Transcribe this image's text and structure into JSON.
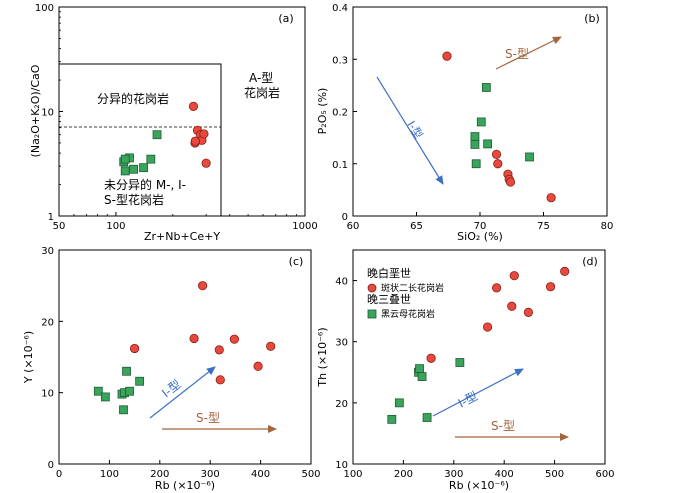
{
  "colors": {
    "late_cretaceous": "#e8493e",
    "late_triassic": "#3aa35c",
    "i_arrow": "#3d6fc7",
    "s_arrow": "#a5643b",
    "axis": "#000000"
  },
  "chart_data": [
    {
      "id": "a",
      "panel_label": "(a)",
      "type": "scatter",
      "xscale": "log",
      "yscale": "log",
      "xlim": [
        50,
        1000
      ],
      "ylim": [
        1,
        100
      ],
      "xticks": [
        "50",
        "100",
        "1000"
      ],
      "xtick_values": [
        50,
        100,
        1000
      ],
      "yticks": [
        "1",
        "10",
        "100"
      ],
      "ytick_values": [
        1,
        10,
        100
      ],
      "xlabel": "Zr+Nb+Ce+Y",
      "ylabel": "(Na₂O+K₂O)/CaO",
      "annotations": {
        "fractionated": "分异的花岗岩",
        "unfractionated_line1": "未分异的 M-, I-",
        "unfractionated_line2": "S-型花岗岩",
        "a_type_line1": "A-型",
        "a_type_line2": "花岗岩"
      },
      "series": [
        {
          "name": "晚白垩世 斑状二长花岗岩",
          "marker": "circle",
          "x": [
            257,
            262,
            270,
            280,
            285,
            292,
            300,
            263
          ],
          "y": [
            11.2,
            5.0,
            6.6,
            6.0,
            5.3,
            6.1,
            3.2,
            5.2
          ]
        },
        {
          "name": "晚三叠世 黑云母花岗岩",
          "marker": "square",
          "x": [
            110,
            112,
            118,
            124,
            140,
            153,
            112,
            165
          ],
          "y": [
            3.3,
            2.7,
            3.6,
            2.8,
            2.9,
            3.5,
            3.5,
            6.0
          ]
        }
      ]
    },
    {
      "id": "b",
      "panel_label": "(b)",
      "type": "scatter",
      "xlim": [
        60,
        80
      ],
      "ylim": [
        0,
        0.4
      ],
      "xticks": [
        "60",
        "65",
        "70",
        "75",
        "80"
      ],
      "xtick_values": [
        60,
        65,
        70,
        75,
        80
      ],
      "yticks": [
        "0",
        "0.1",
        "0.2",
        "0.3",
        "0.4"
      ],
      "ytick_values": [
        0,
        0.1,
        0.2,
        0.3,
        0.4
      ],
      "xlabel": "SiO₂ (%)",
      "ylabel": "P₂O₅ (%)",
      "arrows": {
        "i_label": "I-型",
        "s_label": "S-型"
      },
      "series": [
        {
          "name": "晚白垩世 斑状二长花岗岩",
          "marker": "circle",
          "x": [
            67.4,
            71.3,
            71.4,
            72.2,
            72.3,
            72.4,
            75.6
          ],
          "y": [
            0.306,
            0.118,
            0.1,
            0.08,
            0.07,
            0.065,
            0.035
          ]
        },
        {
          "name": "晚三叠世 黑云母花岗岩",
          "marker": "square",
          "x": [
            69.6,
            69.6,
            69.7,
            70.1,
            70.5,
            70.6,
            73.9
          ],
          "y": [
            0.152,
            0.137,
            0.1,
            0.18,
            0.246,
            0.138,
            0.113
          ]
        }
      ]
    },
    {
      "id": "c",
      "panel_label": "(c)",
      "type": "scatter",
      "xlim": [
        0,
        500
      ],
      "ylim": [
        0,
        30
      ],
      "xticks": [
        "0",
        "100",
        "200",
        "300",
        "400",
        "500"
      ],
      "xtick_values": [
        0,
        100,
        200,
        300,
        400,
        500
      ],
      "yticks": [
        "0",
        "10",
        "20",
        "30"
      ],
      "ytick_values": [
        0,
        10,
        20,
        30
      ],
      "xlabel": "Rb (×10⁻⁶)",
      "ylabel": "Y (×10⁻⁶)",
      "arrows": {
        "i_label": "I-型",
        "s_label": "S-型"
      },
      "series": [
        {
          "name": "晚白垩世 斑状二长花岗岩",
          "marker": "circle",
          "x": [
            150,
            268,
            285,
            318,
            320,
            348,
            395,
            420
          ],
          "y": [
            16.2,
            17.6,
            25.0,
            16.0,
            11.8,
            17.5,
            13.7,
            16.5
          ]
        },
        {
          "name": "晚三叠世 黑云母花岗岩",
          "marker": "square",
          "x": [
            78,
            92,
            125,
            128,
            130,
            134,
            140,
            160
          ],
          "y": [
            10.2,
            9.4,
            9.8,
            7.6,
            10.0,
            13.0,
            10.2,
            11.6
          ]
        }
      ]
    },
    {
      "id": "d",
      "panel_label": "(d)",
      "type": "scatter",
      "xlim": [
        100,
        600
      ],
      "ylim": [
        10,
        45
      ],
      "xticks": [
        "100",
        "200",
        "300",
        "400",
        "500",
        "600"
      ],
      "xtick_values": [
        100,
        200,
        300,
        400,
        500,
        600
      ],
      "yticks": [
        "10",
        "20",
        "30",
        "40"
      ],
      "ytick_values": [
        10,
        20,
        30,
        40
      ],
      "xlabel": "Rb (×10⁻⁶)",
      "ylabel": "Th (×10⁻⁶)",
      "arrows": {
        "i_label": "I-型",
        "s_label": "S-型"
      },
      "legend": {
        "group1_title": "晚白垩世",
        "group1_item": "斑状二长花岗岩",
        "group2_title": "晚三叠世",
        "group2_item": "黑云母花岗岩"
      },
      "series": [
        {
          "name": "晚白垩世 斑状二长花岗岩",
          "marker": "circle",
          "x": [
            255,
            367,
            385,
            415,
            420,
            448,
            492,
            520
          ],
          "y": [
            27.3,
            32.4,
            38.8,
            35.8,
            40.8,
            34.8,
            39.0,
            41.5
          ]
        },
        {
          "name": "晚三叠世 黑云母花岗岩",
          "marker": "square",
          "x": [
            177,
            192,
            230,
            232,
            237,
            247,
            312
          ],
          "y": [
            17.3,
            20.0,
            25.0,
            25.6,
            24.3,
            17.6,
            26.6
          ]
        }
      ]
    }
  ]
}
